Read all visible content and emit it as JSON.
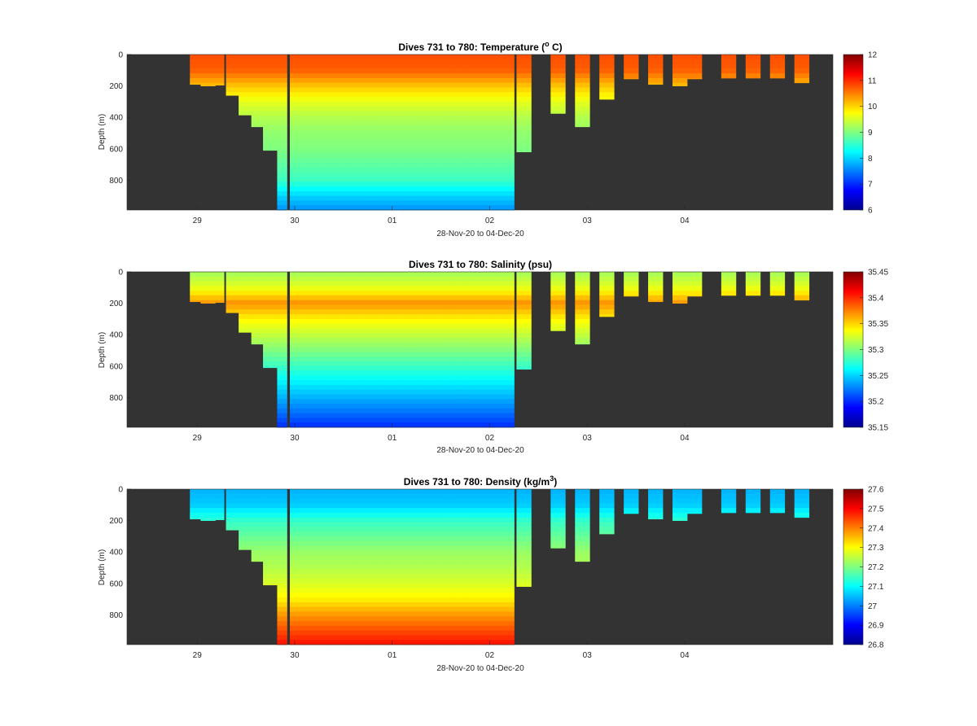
{
  "colors": {
    "background": "#ffffff",
    "no_data": "#333333",
    "axis": "#262626",
    "colormap": "jet"
  },
  "chart_data": [
    {
      "type": "heatmap",
      "title": "Dives 731 to 780: Temperature (° C)",
      "title_parts": {
        "main": "Dives 731 to 780: Temperature (",
        "sup": "o",
        "post": " C)"
      },
      "xlabel": "28-Nov-20 to 04-Dec-20",
      "ylabel": "Depth (m)",
      "x_ticks": [
        "29",
        "30",
        "01",
        "02",
        "03",
        "04"
      ],
      "y_ticks": [
        "0",
        "200",
        "400",
        "600",
        "800"
      ],
      "y_reversed": true,
      "y_range": [
        0,
        990
      ],
      "colorbar": {
        "range": [
          6,
          12
        ],
        "ticks": [
          "12",
          "11",
          "10",
          "9",
          "8",
          "7",
          "6"
        ]
      },
      "profile": [
        {
          "depth": 0,
          "value": 10.8
        },
        {
          "depth": 100,
          "value": 10.7
        },
        {
          "depth": 200,
          "value": 10.1
        },
        {
          "depth": 300,
          "value": 9.6
        },
        {
          "depth": 400,
          "value": 9.3
        },
        {
          "depth": 500,
          "value": 9.1
        },
        {
          "depth": 600,
          "value": 9.0
        },
        {
          "depth": 700,
          "value": 8.8
        },
        {
          "depth": 800,
          "value": 8.6
        },
        {
          "depth": 900,
          "value": 8.0
        },
        {
          "depth": 990,
          "value": 7.6
        }
      ]
    },
    {
      "type": "heatmap",
      "title": "Dives 731 to 780: Salinity (psu)",
      "title_parts": {
        "main": "Dives 731 to 780: Salinity (psu)",
        "sup": "",
        "post": ""
      },
      "xlabel": "28-Nov-20 to 04-Dec-20",
      "ylabel": "Depth (m)",
      "x_ticks": [
        "29",
        "30",
        "01",
        "02",
        "03",
        "04"
      ],
      "y_ticks": [
        "0",
        "200",
        "400",
        "600",
        "800"
      ],
      "y_reversed": true,
      "y_range": [
        0,
        990
      ],
      "colorbar": {
        "range": [
          35.15,
          35.45
        ],
        "ticks": [
          "35.45",
          "35.4",
          "35.35",
          "35.3",
          "35.25",
          "35.2",
          "35.15"
        ]
      },
      "profile": [
        {
          "depth": 0,
          "value": 35.31
        },
        {
          "depth": 100,
          "value": 35.33
        },
        {
          "depth": 200,
          "value": 35.37
        },
        {
          "depth": 300,
          "value": 35.34
        },
        {
          "depth": 400,
          "value": 35.32
        },
        {
          "depth": 500,
          "value": 35.3
        },
        {
          "depth": 600,
          "value": 35.28
        },
        {
          "depth": 700,
          "value": 35.26
        },
        {
          "depth": 800,
          "value": 35.24
        },
        {
          "depth": 900,
          "value": 35.22
        },
        {
          "depth": 990,
          "value": 35.2
        }
      ]
    },
    {
      "type": "heatmap",
      "title": "Dives 731 to 780: Density (kg/m3)",
      "title_parts": {
        "main": "Dives 731 to 780: Density (kg/m",
        "sup": "3",
        "post": ")"
      },
      "xlabel": "28-Nov-20 to 04-Dec-20",
      "ylabel": "Depth (m)",
      "x_ticks": [
        "29",
        "30",
        "01",
        "02",
        "03",
        "04"
      ],
      "y_ticks": [
        "0",
        "200",
        "400",
        "600",
        "800"
      ],
      "y_reversed": true,
      "y_range": [
        0,
        990
      ],
      "colorbar": {
        "range": [
          26.8,
          27.6
        ],
        "ticks": [
          "27.6",
          "27.5",
          "27.4",
          "27.3",
          "27.2",
          "27.1",
          "27",
          "26.9",
          "26.8"
        ]
      },
      "profile": [
        {
          "depth": 0,
          "value": 27.04
        },
        {
          "depth": 100,
          "value": 27.06
        },
        {
          "depth": 200,
          "value": 27.14
        },
        {
          "depth": 300,
          "value": 27.18
        },
        {
          "depth": 400,
          "value": 27.22
        },
        {
          "depth": 500,
          "value": 27.24
        },
        {
          "depth": 600,
          "value": 27.27
        },
        {
          "depth": 700,
          "value": 27.31
        },
        {
          "depth": 800,
          "value": 27.38
        },
        {
          "depth": 900,
          "value": 27.44
        },
        {
          "depth": 990,
          "value": 27.49
        }
      ]
    }
  ],
  "dives": [
    {
      "t": 0.0,
      "max_depth": 190
    },
    {
      "t": 0.11,
      "max_depth": 200
    },
    {
      "t": 0.2,
      "max_depth": 195
    },
    {
      "t": 0.37,
      "max_depth": 260
    },
    {
      "t": 0.5,
      "max_depth": 385
    },
    {
      "t": 0.63,
      "max_depth": 460
    },
    {
      "t": 0.75,
      "max_depth": 610
    },
    {
      "t": 0.87,
      "max_depth": 990
    },
    {
      "t": 1.0,
      "max_depth": 990
    },
    {
      "t": 1.1,
      "max_depth": 990
    },
    {
      "t": 1.2,
      "max_depth": 990
    },
    {
      "t": 1.3,
      "max_depth": 990
    },
    {
      "t": 1.4,
      "max_depth": 990
    },
    {
      "t": 1.5,
      "max_depth": 990
    },
    {
      "t": 1.6,
      "max_depth": 990
    },
    {
      "t": 1.7,
      "max_depth": 990
    },
    {
      "t": 1.8,
      "max_depth": 990
    },
    {
      "t": 1.9,
      "max_depth": 990
    },
    {
      "t": 2.0,
      "max_depth": 990
    },
    {
      "t": 2.1,
      "max_depth": 990
    },
    {
      "t": 2.2,
      "max_depth": 990
    },
    {
      "t": 2.3,
      "max_depth": 990
    },
    {
      "t": 2.4,
      "max_depth": 990
    },
    {
      "t": 2.5,
      "max_depth": 990
    },
    {
      "t": 2.6,
      "max_depth": 990
    },
    {
      "t": 2.7,
      "max_depth": 990
    },
    {
      "t": 2.8,
      "max_depth": 990
    },
    {
      "t": 2.9,
      "max_depth": 990
    },
    {
      "t": 3.0,
      "max_depth": 990
    },
    {
      "t": 3.1,
      "max_depth": 990
    },
    {
      "t": 3.2,
      "max_depth": 990
    },
    {
      "t": 3.35,
      "max_depth": 620
    },
    {
      "t": 3.7,
      "max_depth": 375
    },
    {
      "t": 3.95,
      "max_depth": 460
    },
    {
      "t": 4.2,
      "max_depth": 285
    },
    {
      "t": 4.45,
      "max_depth": 155
    },
    {
      "t": 4.7,
      "max_depth": 190
    },
    {
      "t": 4.95,
      "max_depth": 200
    },
    {
      "t": 5.1,
      "max_depth": 155
    },
    {
      "t": 5.45,
      "max_depth": 150
    },
    {
      "t": 5.7,
      "max_depth": 150
    },
    {
      "t": 5.95,
      "max_depth": 150
    },
    {
      "t": 6.2,
      "max_depth": 180
    }
  ]
}
